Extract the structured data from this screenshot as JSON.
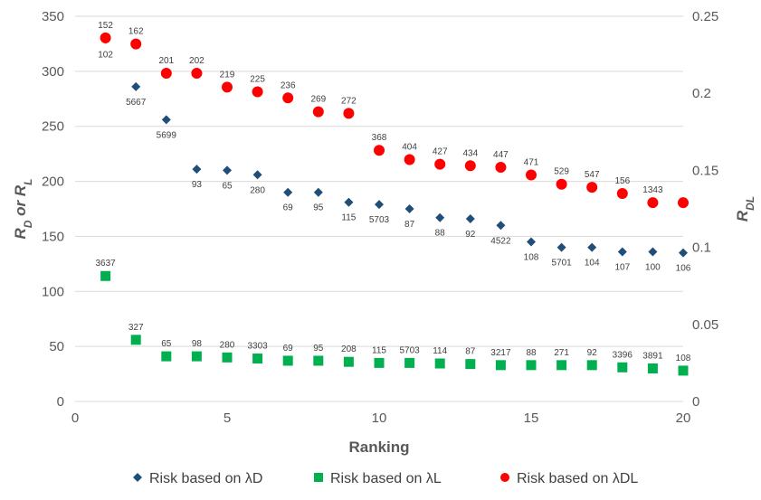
{
  "chart_data": {
    "type": "scatter",
    "x_label": "Ranking",
    "y_label": [
      "R",
      "D",
      " or ",
      "R",
      "L"
    ],
    "y2_label": [
      "R",
      "DL"
    ],
    "x": [
      1,
      2,
      3,
      4,
      5,
      6,
      7,
      8,
      9,
      10,
      11,
      12,
      13,
      14,
      15,
      16,
      17,
      18,
      19,
      20
    ],
    "xlim": [
      0,
      20
    ],
    "xticks": [
      0,
      5,
      10,
      15,
      20
    ],
    "ylim": [
      0,
      350
    ],
    "yticks": [
      0,
      50,
      100,
      150,
      200,
      250,
      300,
      350
    ],
    "y2lim": [
      0,
      0.25
    ],
    "y2ticks": [
      0,
      0.05,
      0.1,
      0.15,
      0.2,
      0.25
    ],
    "grid": true,
    "legend": "bottom",
    "series": [
      {
        "name": "Risk based on λD",
        "color": "#1f4e79",
        "marker": "diamond",
        "values": [
          329,
          286,
          256,
          211,
          210,
          206,
          190,
          190,
          181,
          179,
          175,
          167,
          166,
          160,
          145,
          140,
          140,
          136,
          136,
          135
        ],
        "point_labels": [
          "102",
          "5667",
          "5699",
          "93",
          "65",
          "280",
          "69",
          "95",
          "115",
          "5703",
          "87",
          "88",
          "92",
          "4522",
          "108",
          "5701",
          "104",
          "107",
          "100",
          "106"
        ]
      },
      {
        "name": "Risk based on λL",
        "color": "#00b050",
        "marker": "square",
        "values": [
          114,
          56,
          41,
          41,
          40,
          39,
          37,
          37,
          36,
          35,
          35,
          34.5,
          34,
          33,
          33,
          33,
          33,
          31,
          30,
          28
        ],
        "point_labels": [
          "3637",
          "327",
          "65",
          "98",
          "280",
          "3303",
          "69",
          "95",
          "208",
          "115",
          "5703",
          "114",
          "87",
          "3217",
          "88",
          "271",
          "92",
          "3396",
          "3891",
          "108"
        ]
      },
      {
        "name": "Risk based on λDL",
        "color": "#ff0000",
        "marker": "circle",
        "axis": "y2",
        "values": [
          0.236,
          0.232,
          0.213,
          0.213,
          0.204,
          0.201,
          0.197,
          0.188,
          0.187,
          0.163,
          0.157,
          0.154,
          0.153,
          0.152,
          0.147,
          0.141,
          0.139,
          0.135,
          0.129,
          0.129
        ],
        "point_labels": [
          "152",
          "162",
          "201",
          "202",
          "219",
          "225",
          "236",
          "269",
          "272",
          "368",
          "404",
          "427",
          "434",
          "447",
          "471",
          "529",
          "547",
          "156",
          "1343",
          null
        ]
      }
    ]
  }
}
